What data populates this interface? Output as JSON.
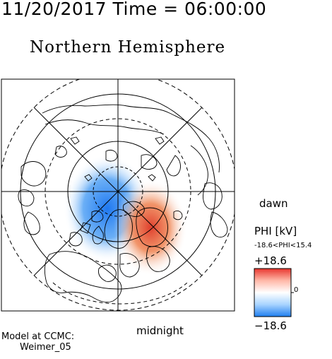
{
  "header": {
    "datetime": "11/20/2017 Time = 06:00:00",
    "hemisphere": "Northern Hemisphere"
  },
  "map": {
    "label_dawn": "dawn",
    "label_midnight": "midnight",
    "pole": "north",
    "negative_cell_color": "#2f7fe0",
    "positive_cell_color": "#e0553a"
  },
  "colorbar": {
    "title": "PHI [kV]",
    "range_text": "-18.6<PHI<15.4",
    "max_label": "+18.6",
    "min_label": "−18.6",
    "zero_label": "0",
    "min": -18.6,
    "max": 18.6,
    "colors": [
      "#1f7ff0",
      "#bfe0ff",
      "#ffffff",
      "#ffd2c8",
      "#e8362e"
    ]
  },
  "footer": {
    "model_line1": "Model at CCMC:",
    "model_line2": "Weimer_05"
  }
}
